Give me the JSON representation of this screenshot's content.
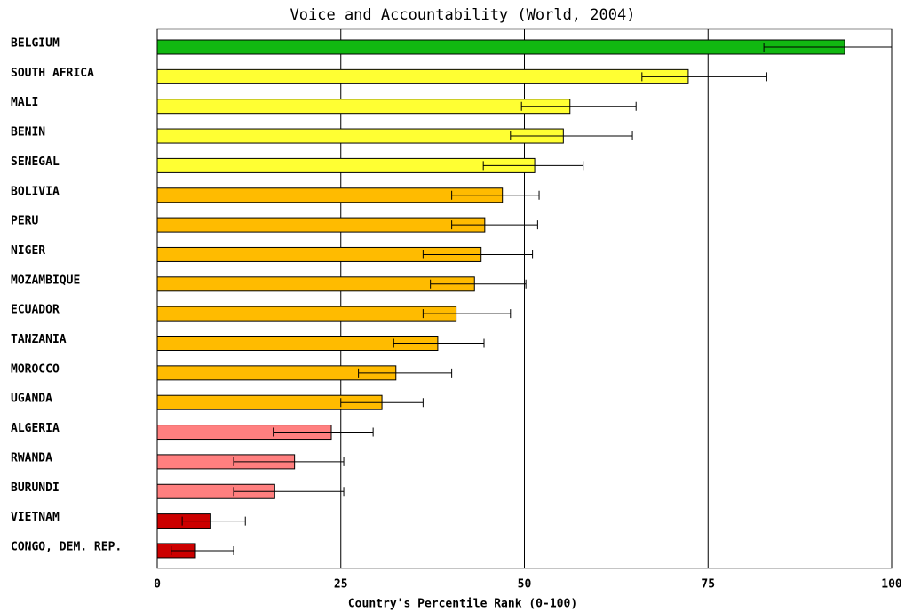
{
  "chart_data": {
    "type": "hbar_errors",
    "title": "Voice and Accountability (World, 2004)",
    "x_label": "Country's Percentile Rank (0-100)",
    "categories": [
      "BELGIUM",
      "SOUTH AFRICA",
      "MALI",
      "BENIN",
      "SENEGAL",
      "BOLIVIA",
      "PERU",
      "NIGER",
      "MOZAMBIQUE",
      "ECUADOR",
      "TANZANIA",
      "MOROCCO",
      "UGANDA",
      "ALGERIA",
      "RWANDA",
      "BURUNDI",
      "VIETNAM",
      "CONGO, DEM. REP."
    ],
    "values": [
      93.6,
      72.3,
      56.2,
      55.3,
      51.4,
      47.0,
      44.6,
      44.1,
      43.2,
      40.7,
      38.2,
      32.5,
      30.6,
      23.7,
      18.7,
      16.0,
      7.3,
      5.2
    ],
    "error_low": [
      82.6,
      66.0,
      49.6,
      48.1,
      44.4,
      40.1,
      40.1,
      36.2,
      37.2,
      36.2,
      32.2,
      27.4,
      25.0,
      15.8,
      10.4,
      10.4,
      3.4,
      1.9
    ],
    "error_high": [
      100,
      83.0,
      65.2,
      64.7,
      58.0,
      52.0,
      51.8,
      51.1,
      50.2,
      48.1,
      44.5,
      40.1,
      36.2,
      29.4,
      25.4,
      25.4,
      12.0,
      10.4
    ],
    "colors": [
      "#11b811",
      "#ffff33",
      "#ffff33",
      "#ffff33",
      "#ffff33",
      "#ffbb00",
      "#ffbb00",
      "#ffbb00",
      "#ffbb00",
      "#ffbb00",
      "#ffbb00",
      "#ffbb00",
      "#ffbb00",
      "#ff7f7f",
      "#ff7f7f",
      "#ff7f7f",
      "#cc0000",
      "#cc0000"
    ],
    "xlim": [
      0,
      100
    ],
    "xticks": [
      0,
      25,
      50,
      75,
      100
    ],
    "grid": true
  }
}
